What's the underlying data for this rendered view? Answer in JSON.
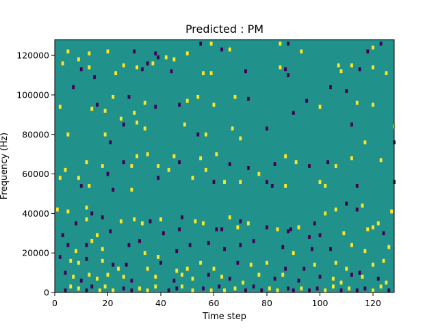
{
  "chart_data": {
    "type": "heatmap",
    "title": "Predicted : PM",
    "xlabel": "Time step",
    "ylabel": "Frequency (Hz)",
    "xlim": [
      0,
      128
    ],
    "ylim": [
      0,
      128000
    ],
    "x_ticks": [
      0,
      20,
      40,
      60,
      80,
      100,
      120
    ],
    "y_ticks": [
      0,
      20000,
      40000,
      60000,
      80000,
      100000,
      120000
    ],
    "value_levels": [
      -1,
      0,
      1
    ],
    "grid": false,
    "legend": "none",
    "colors": {
      "-1": "#440154",
      "0": "#21918c",
      "1": "#fde725"
    },
    "background_value": 0,
    "cells_note_format": "[time_step, frequency_hz, value]",
    "cells": [
      [
        3,
        116000,
        1
      ],
      [
        5,
        122000,
        1
      ],
      [
        9,
        118000,
        1
      ],
      [
        13,
        121000,
        1
      ],
      [
        20,
        122000,
        1
      ],
      [
        30,
        122000,
        -1
      ],
      [
        31,
        114000,
        1
      ],
      [
        37,
        116000,
        1
      ],
      [
        38,
        121000,
        -1
      ],
      [
        39,
        119000,
        -1
      ],
      [
        42,
        119000,
        1
      ],
      [
        45,
        118000,
        1
      ],
      [
        50,
        121000,
        1
      ],
      [
        55,
        126000,
        -1
      ],
      [
        59,
        126000,
        1
      ],
      [
        63,
        123000,
        -1
      ],
      [
        66,
        123000,
        1
      ],
      [
        85,
        126000,
        1
      ],
      [
        88,
        126000,
        -1
      ],
      [
        93,
        122000,
        1
      ],
      [
        118,
        122000,
        -1
      ],
      [
        120,
        124000,
        1
      ],
      [
        123,
        126000,
        -1
      ],
      [
        10,
        113000,
        -1
      ],
      [
        13,
        114000,
        1
      ],
      [
        15,
        109000,
        -1
      ],
      [
        23,
        111000,
        1
      ],
      [
        26,
        115000,
        1
      ],
      [
        33,
        113000,
        -1
      ],
      [
        35,
        116000,
        -1
      ],
      [
        44,
        112000,
        -1
      ],
      [
        56,
        111000,
        1
      ],
      [
        59,
        111000,
        1
      ],
      [
        72,
        112000,
        -1
      ],
      [
        85,
        114000,
        1
      ],
      [
        87,
        113000,
        -1
      ],
      [
        88,
        110000,
        -1
      ],
      [
        107,
        115000,
        1
      ],
      [
        108,
        112000,
        1
      ],
      [
        112,
        115000,
        1
      ],
      [
        115,
        113000,
        -1
      ],
      [
        120,
        114000,
        1
      ],
      [
        125,
        111000,
        1
      ],
      [
        2,
        94000,
        1
      ],
      [
        7,
        104000,
        -1
      ],
      [
        14,
        93000,
        1
      ],
      [
        16,
        95000,
        -1
      ],
      [
        19,
        92000,
        1
      ],
      [
        22,
        99000,
        1
      ],
      [
        25,
        88000,
        1
      ],
      [
        28,
        99000,
        -1
      ],
      [
        30,
        91000,
        1
      ],
      [
        34,
        96000,
        1
      ],
      [
        38,
        94000,
        -1
      ],
      [
        47,
        95000,
        -1
      ],
      [
        50,
        97000,
        1
      ],
      [
        54,
        99000,
        1
      ],
      [
        60,
        95000,
        1
      ],
      [
        68,
        99000,
        1
      ],
      [
        73,
        98000,
        -1
      ],
      [
        90,
        91000,
        -1
      ],
      [
        95,
        97000,
        -1
      ],
      [
        100,
        94000,
        1
      ],
      [
        104,
        104000,
        -1
      ],
      [
        110,
        102000,
        -1
      ],
      [
        114,
        96000,
        1
      ],
      [
        120,
        95000,
        1
      ],
      [
        5,
        80000,
        1
      ],
      [
        19,
        80000,
        1
      ],
      [
        21,
        76000,
        -1
      ],
      [
        26,
        85000,
        -1
      ],
      [
        31,
        86000,
        1
      ],
      [
        34,
        83000,
        1
      ],
      [
        49,
        85000,
        1
      ],
      [
        54,
        80000,
        -1
      ],
      [
        57,
        80000,
        1
      ],
      [
        67,
        83000,
        1
      ],
      [
        70,
        78000,
        1
      ],
      [
        80,
        83000,
        -1
      ],
      [
        112,
        85000,
        -1
      ],
      [
        117,
        76000,
        1
      ],
      [
        128,
        84000,
        1
      ],
      [
        128,
        76000,
        -1
      ],
      [
        4,
        62000,
        1
      ],
      [
        9,
        58000,
        1
      ],
      [
        12,
        66000,
        1
      ],
      [
        18,
        64000,
        1
      ],
      [
        20,
        60000,
        -1
      ],
      [
        26,
        66000,
        -1
      ],
      [
        29,
        64000,
        1
      ],
      [
        31,
        69000,
        1
      ],
      [
        35,
        70000,
        1
      ],
      [
        39,
        64000,
        1
      ],
      [
        43,
        62000,
        1
      ],
      [
        45,
        69000,
        1
      ],
      [
        47,
        66000,
        -1
      ],
      [
        55,
        68000,
        1
      ],
      [
        57,
        62000,
        1
      ],
      [
        61,
        70000,
        1
      ],
      [
        66,
        65000,
        -1
      ],
      [
        73,
        63000,
        -1
      ],
      [
        77,
        60000,
        1
      ],
      [
        83,
        65000,
        -1
      ],
      [
        87,
        69000,
        1
      ],
      [
        91,
        66000,
        1
      ],
      [
        96,
        64000,
        -1
      ],
      [
        103,
        66000,
        -1
      ],
      [
        106,
        64000,
        1
      ],
      [
        112,
        68000,
        1
      ],
      [
        123,
        67000,
        1
      ],
      [
        2,
        58000,
        1
      ],
      [
        10,
        54000,
        -1
      ],
      [
        13,
        54000,
        1
      ],
      [
        22,
        52000,
        -1
      ],
      [
        29,
        52000,
        1
      ],
      [
        39,
        58000,
        -1
      ],
      [
        52,
        58000,
        1
      ],
      [
        60,
        56000,
        -1
      ],
      [
        64,
        56000,
        1
      ],
      [
        70,
        56000,
        1
      ],
      [
        80,
        56000,
        -1
      ],
      [
        82,
        54000,
        -1
      ],
      [
        87,
        54000,
        1
      ],
      [
        100,
        56000,
        1
      ],
      [
        102,
        54000,
        1
      ],
      [
        114,
        54000,
        -1
      ],
      [
        128,
        56000,
        -1
      ],
      [
        12,
        43000,
        1
      ],
      [
        14,
        40000,
        -1
      ],
      [
        18,
        38000,
        -1
      ],
      [
        25,
        36000,
        1
      ],
      [
        30,
        37000,
        1
      ],
      [
        36,
        36000,
        -1
      ],
      [
        40,
        37000,
        1
      ],
      [
        41,
        30000,
        -1
      ],
      [
        48,
        38000,
        -1
      ],
      [
        53,
        36000,
        1
      ],
      [
        56,
        35000,
        1
      ],
      [
        63,
        32000,
        -1
      ],
      [
        66,
        38000,
        1
      ],
      [
        70,
        36000,
        -1
      ],
      [
        73,
        35000,
        1
      ],
      [
        80,
        33000,
        -1
      ],
      [
        84,
        32000,
        1
      ],
      [
        89,
        32000,
        -1
      ],
      [
        98,
        35000,
        -1
      ],
      [
        102,
        40000,
        1
      ],
      [
        106,
        42000,
        1
      ],
      [
        110,
        45000,
        -1
      ],
      [
        114,
        42000,
        -1
      ],
      [
        116,
        44000,
        1
      ],
      [
        122,
        35000,
        1
      ],
      [
        127,
        41000,
        1
      ],
      [
        1,
        42000,
        1
      ],
      [
        5,
        41000,
        1
      ],
      [
        8,
        35000,
        -1
      ],
      [
        12,
        37000,
        1
      ],
      [
        16,
        29000,
        1
      ],
      [
        21,
        31000,
        -1
      ],
      [
        33,
        35000,
        1
      ],
      [
        47,
        32000,
        -1
      ],
      [
        61,
        32000,
        -1
      ],
      [
        69,
        33000,
        1
      ],
      [
        88,
        31000,
        -1
      ],
      [
        92,
        33000,
        1
      ],
      [
        96,
        28000,
        -1
      ],
      [
        100,
        29000,
        -1
      ],
      [
        109,
        30000,
        1
      ],
      [
        118,
        32000,
        1
      ],
      [
        120,
        33000,
        1
      ],
      [
        124,
        30000,
        -1
      ],
      [
        3,
        29000,
        -1
      ],
      [
        5,
        24000,
        -1
      ],
      [
        8,
        21000,
        1
      ],
      [
        12,
        24000,
        -1
      ],
      [
        14,
        26000,
        1
      ],
      [
        18,
        22000,
        1
      ],
      [
        28,
        24000,
        -1
      ],
      [
        32,
        26000,
        -1
      ],
      [
        34,
        20000,
        1
      ],
      [
        39,
        18000,
        1
      ],
      [
        46,
        21000,
        -1
      ],
      [
        51,
        24000,
        -1
      ],
      [
        58,
        25000,
        -1
      ],
      [
        64,
        22000,
        -1
      ],
      [
        70,
        24000,
        -1
      ],
      [
        75,
        26000,
        -1
      ],
      [
        86,
        23000,
        -1
      ],
      [
        90,
        20000,
        1
      ],
      [
        97,
        22000,
        -1
      ],
      [
        104,
        22000,
        -1
      ],
      [
        112,
        24000,
        1
      ],
      [
        117,
        21000,
        1
      ],
      [
        126,
        23000,
        1
      ],
      [
        2,
        18000,
        -1
      ],
      [
        6,
        16000,
        1
      ],
      [
        9,
        15000,
        1
      ],
      [
        12,
        17000,
        -1
      ],
      [
        18,
        16000,
        1
      ],
      [
        22,
        14000,
        -1
      ],
      [
        24,
        12000,
        1
      ],
      [
        27,
        14000,
        -1
      ],
      [
        35,
        12000,
        1
      ],
      [
        40,
        15000,
        -1
      ],
      [
        46,
        11000,
        1
      ],
      [
        50,
        12000,
        1
      ],
      [
        55,
        15000,
        1
      ],
      [
        60,
        12000,
        1
      ],
      [
        69,
        15000,
        -1
      ],
      [
        74,
        14000,
        1
      ],
      [
        80,
        15000,
        1
      ],
      [
        87,
        12000,
        -1
      ],
      [
        94,
        12000,
        -1
      ],
      [
        98,
        14000,
        1
      ],
      [
        106,
        15000,
        1
      ],
      [
        110,
        12000,
        1
      ],
      [
        115,
        10000,
        -1
      ],
      [
        120,
        14000,
        1
      ],
      [
        124,
        16000,
        1
      ],
      [
        4,
        10000,
        -1
      ],
      [
        7,
        8000,
        1
      ],
      [
        10,
        6000,
        -1
      ],
      [
        13,
        9000,
        1
      ],
      [
        16,
        7000,
        1
      ],
      [
        20,
        9000,
        1
      ],
      [
        26,
        8000,
        1
      ],
      [
        29,
        6000,
        -1
      ],
      [
        38,
        8000,
        1
      ],
      [
        45,
        6000,
        -1
      ],
      [
        48,
        9000,
        1
      ],
      [
        52,
        7000,
        1
      ],
      [
        58,
        9000,
        -1
      ],
      [
        63,
        8000,
        1
      ],
      [
        66,
        7000,
        -1
      ],
      [
        71,
        5000,
        1
      ],
      [
        77,
        9000,
        1
      ],
      [
        83,
        7000,
        -1
      ],
      [
        86,
        9000,
        1
      ],
      [
        92,
        6000,
        -1
      ],
      [
        100,
        8000,
        -1
      ],
      [
        105,
        7000,
        1
      ],
      [
        108,
        5000,
        1
      ],
      [
        112,
        9000,
        -1
      ],
      [
        116,
        8000,
        1
      ],
      [
        122,
        7000,
        -1
      ],
      [
        125,
        5000,
        1
      ],
      [
        4,
        1000,
        -1
      ],
      [
        6,
        3000,
        1
      ],
      [
        9,
        2000,
        1
      ],
      [
        12,
        1000,
        -1
      ],
      [
        14,
        3000,
        -1
      ],
      [
        17,
        1000,
        1
      ],
      [
        19,
        3000,
        1
      ],
      [
        22,
        1000,
        1
      ],
      [
        26,
        2000,
        -1
      ],
      [
        29,
        1000,
        -1
      ],
      [
        32,
        2000,
        1
      ],
      [
        35,
        1000,
        1
      ],
      [
        38,
        3000,
        1
      ],
      [
        43,
        1000,
        -1
      ],
      [
        46,
        2000,
        -1
      ],
      [
        48,
        3000,
        1
      ],
      [
        52,
        1000,
        1
      ],
      [
        56,
        2000,
        -1
      ],
      [
        59,
        1000,
        1
      ],
      [
        62,
        3000,
        -1
      ],
      [
        64,
        1000,
        1
      ],
      [
        68,
        2000,
        1
      ],
      [
        72,
        1000,
        -1
      ],
      [
        75,
        3000,
        -1
      ],
      [
        78,
        1000,
        -1
      ],
      [
        81,
        2000,
        1
      ],
      [
        84,
        1000,
        1
      ],
      [
        88,
        2000,
        -1
      ],
      [
        90,
        1000,
        -1
      ],
      [
        93,
        2000,
        1
      ],
      [
        96,
        1000,
        -1
      ],
      [
        99,
        2000,
        -1
      ],
      [
        102,
        1000,
        1
      ],
      [
        105,
        3000,
        1
      ],
      [
        108,
        1000,
        -1
      ],
      [
        111,
        2000,
        1
      ],
      [
        114,
        1000,
        -1
      ],
      [
        117,
        2000,
        -1
      ],
      [
        120,
        1000,
        1
      ],
      [
        123,
        3000,
        1
      ],
      [
        126,
        1000,
        -1
      ]
    ]
  }
}
